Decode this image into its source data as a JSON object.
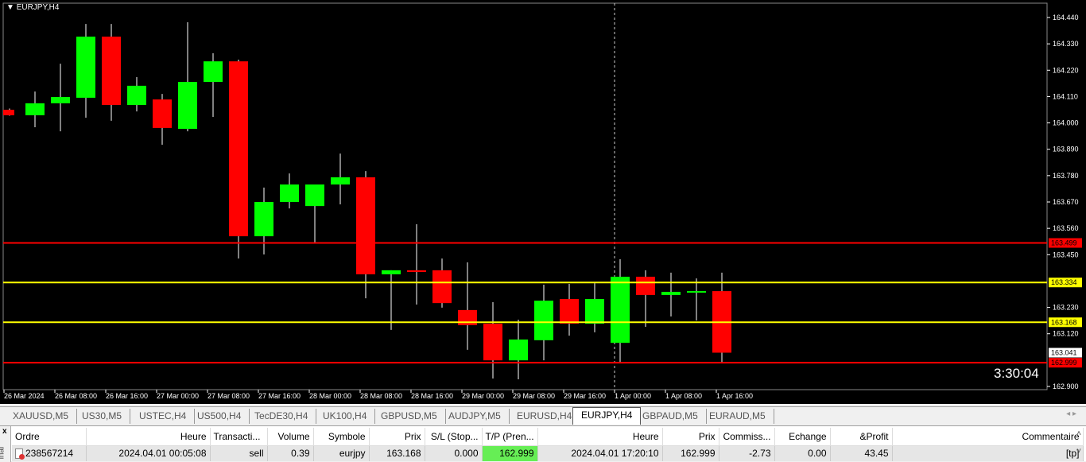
{
  "chart": {
    "symbol_label": "EURJPY,H4",
    "countdown": "3:30:04",
    "colors": {
      "bull": "#00ff00",
      "bear": "#ff0000",
      "background": "#000000",
      "axis_text": "#ffffff"
    },
    "price_ticks": [
      "164.440",
      "164.330",
      "164.220",
      "164.110",
      "164.000",
      "163.890",
      "163.780",
      "163.670",
      "163.560",
      "163.450",
      "163.230",
      "163.120",
      "162.900"
    ],
    "time_labels": [
      "26 Mar 2024",
      "26 Mar 08:00",
      "26 Mar 16:00",
      "27 Mar 00:00",
      "27 Mar 08:00",
      "27 Mar 16:00",
      "28 Mar 00:00",
      "28 Mar 08:00",
      "28 Mar 16:00",
      "29 Mar 00:00",
      "29 Mar 08:00",
      "29 Mar 16:00",
      "1 Apr 00:00",
      "1 Apr 08:00",
      "1 Apr 16:00"
    ],
    "levels": [
      {
        "price": "163.499",
        "color": "#ff0000",
        "label_bg": "#ff0000"
      },
      {
        "price": "163.334",
        "color": "#ffff00",
        "label_bg": "#ffff00"
      },
      {
        "price": "163.168",
        "color": "#ffff00",
        "label_bg": "#ffff00"
      },
      {
        "price": "162.999",
        "color": "#ff0000",
        "label_bg": "#ff0000"
      }
    ],
    "current_price": "163.041",
    "candles": [
      [
        164.055,
        164.06,
        164.03,
        164.032
      ],
      [
        164.032,
        164.131,
        163.982,
        164.082
      ],
      [
        164.082,
        164.247,
        163.965,
        164.108
      ],
      [
        164.105,
        164.413,
        164.022,
        164.36
      ],
      [
        164.36,
        164.413,
        164.009,
        164.075
      ],
      [
        164.075,
        164.191,
        164.048,
        164.155
      ],
      [
        164.098,
        164.121,
        163.909,
        163.979
      ],
      [
        163.975,
        164.42,
        163.965,
        164.171
      ],
      [
        164.171,
        164.291,
        164.025,
        164.257
      ],
      [
        164.257,
        164.264,
        163.434,
        163.527
      ],
      [
        163.527,
        163.73,
        163.451,
        163.67
      ],
      [
        163.67,
        163.789,
        163.643,
        163.743
      ],
      [
        163.653,
        163.743,
        163.501,
        163.743
      ],
      [
        163.743,
        163.872,
        163.66,
        163.773
      ],
      [
        163.773,
        163.799,
        163.268,
        163.368
      ],
      [
        163.368,
        163.385,
        163.136,
        163.385
      ],
      [
        163.385,
        163.577,
        163.242,
        163.378
      ],
      [
        163.385,
        163.434,
        163.229,
        163.248
      ],
      [
        163.219,
        163.418,
        163.053,
        163.156
      ],
      [
        163.162,
        163.252,
        162.933,
        163.009
      ],
      [
        163.009,
        163.179,
        162.93,
        163.096
      ],
      [
        163.093,
        163.325,
        163.009,
        163.258
      ],
      [
        163.265,
        163.328,
        163.112,
        163.162
      ],
      [
        163.162,
        163.331,
        163.126,
        163.265
      ],
      [
        163.082,
        163.431,
        163.003,
        163.358
      ],
      [
        163.358,
        163.385,
        163.149,
        163.282
      ],
      [
        163.282,
        163.375,
        163.192,
        163.295
      ],
      [
        163.292,
        163.351,
        163.175,
        163.298
      ],
      [
        163.298,
        163.375,
        162.999,
        163.041
      ]
    ]
  },
  "tabs": [
    "XAUUSD,M5",
    "US30,M5",
    "USTEC,H4",
    "US500,H4",
    "TecDE30,H4",
    "UK100,H4",
    "GBPUSD,M5",
    "AUDJPY,M5",
    "EURUSD,H4",
    "EURJPY,H4",
    "GBPAUD,M5",
    "EURAUD,M5"
  ],
  "active_tab": "EURJPY,H4",
  "terminal": {
    "close": "x",
    "side_label": "inal",
    "columns": [
      "Ordre",
      "Heure",
      "Transacti...",
      "Volume",
      "Symbole",
      "Prix",
      "S/L (Stop...",
      "T/P (Pren...",
      "Heure",
      "Prix",
      "Commiss...",
      "Echange",
      "&Profit",
      "Commentaire"
    ],
    "rows": [
      [
        "238567214",
        "2024.04.01 00:05:08",
        "sell",
        "0.39",
        "eurjpy",
        "163.168",
        "0.000",
        "162.999",
        "2024.04.01 17:20:10",
        "162.999",
        "-2.73",
        "0.00",
        "43.45",
        "[tp]"
      ]
    ]
  }
}
